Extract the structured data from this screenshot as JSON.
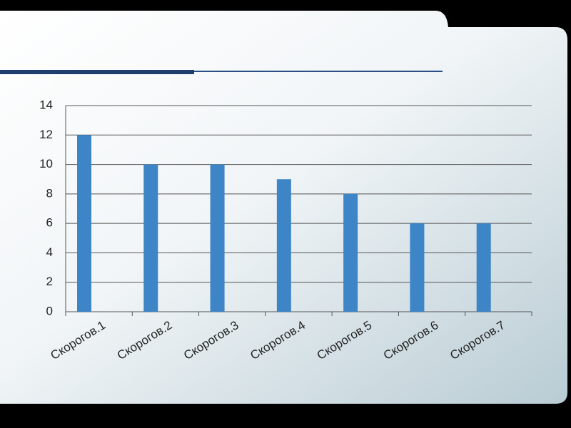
{
  "chart_data": {
    "type": "bar",
    "categories": [
      "Скорогов.1",
      "Скорогов.2",
      "Скорогов.3",
      "Скорогов.4",
      "Скорогов.5",
      "Скорогов.6",
      "Скорогов.7"
    ],
    "values": [
      12,
      10,
      10,
      9,
      8,
      6,
      6
    ],
    "color": "#3d85c6",
    "ylim": [
      0,
      14
    ],
    "yticks": [
      0,
      2,
      4,
      6,
      8,
      10,
      12,
      14
    ],
    "grid": true
  }
}
